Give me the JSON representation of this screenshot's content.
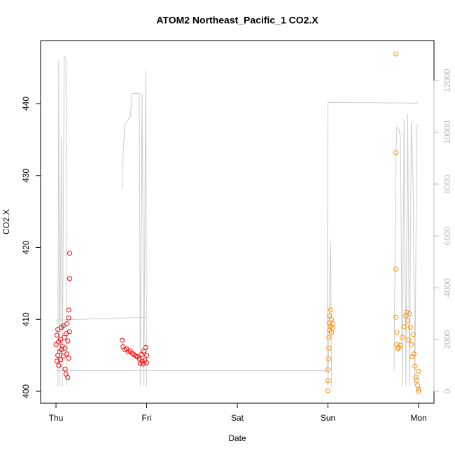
{
  "chart_data": {
    "type": "scatter",
    "title": "ATOM2 Northeast_Pacific_1 CO2.X",
    "x_label": "Date",
    "y_label": "CO2.X",
    "xlim": [
      -0.17,
      4.17
    ],
    "xticks": [
      {
        "value": 0,
        "label": "Thu"
      },
      {
        "value": 1,
        "label": "Fri"
      },
      {
        "value": 2,
        "label": "Sat"
      },
      {
        "value": 3,
        "label": "Sun"
      },
      {
        "value": 4,
        "label": "Mon"
      }
    ],
    "ylim": [
      398.35,
      448.76
    ],
    "yticks": [
      400,
      410,
      420,
      430,
      440
    ],
    "y2lim": [
      -459,
      13540
    ],
    "y2ticks": [
      0,
      2000,
      4000,
      6000,
      8000,
      10000,
      12000
    ],
    "series": [
      {
        "color": "#ff0000",
        "x": [
          0.0,
          0.01,
          0.01,
          0.02,
          0.02,
          0.03,
          0.03,
          0.04,
          0.05,
          0.05,
          0.06,
          0.06,
          0.07,
          0.08,
          0.08,
          0.09,
          0.1,
          0.1,
          0.11,
          0.11,
          0.12,
          0.12,
          0.13,
          0.13,
          0.14,
          0.14,
          0.14,
          0.15,
          0.15,
          0.15,
          0.73,
          0.74,
          0.76,
          0.78,
          0.8,
          0.82,
          0.84,
          0.86,
          0.88,
          0.9,
          0.92,
          0.93,
          0.94,
          0.95,
          0.96,
          0.97,
          0.98,
          0.99,
          1.0,
          1.0
        ],
        "values": [
          406.5,
          404.2,
          407.8,
          405.0,
          408.6,
          403.6,
          406.9,
          405.5,
          407.2,
          404.4,
          408.9,
          405.8,
          406.3,
          404.9,
          409.1,
          407.5,
          403.1,
          406.0,
          408.0,
          402.4,
          405.2,
          409.4,
          401.9,
          407.0,
          404.6,
          410.2,
          411.3,
          415.7,
          419.2,
          408.3,
          407.1,
          406.2,
          405.8,
          405.9,
          405.5,
          405.6,
          405.3,
          405.1,
          404.9,
          404.8,
          404.5,
          403.9,
          405.1,
          404.2,
          403.8,
          405.6,
          404.3,
          406.1,
          405.0,
          404.0
        ]
      },
      {
        "color": "#ff8c00",
        "x": [
          3.0,
          3.0,
          3.0,
          3.01,
          3.01,
          3.01,
          3.02,
          3.02,
          3.02,
          3.03,
          3.03,
          3.04,
          3.04,
          3.05,
          3.05,
          3.75,
          3.75,
          3.75,
          3.75,
          3.76,
          3.76,
          3.77,
          3.78,
          3.8,
          3.82,
          3.84,
          3.86,
          3.87,
          3.88,
          3.89,
          3.9,
          3.91,
          3.92,
          3.93,
          3.94,
          3.95,
          3.96,
          3.97,
          3.98,
          3.99,
          4.0,
          4.0,
          4.0
        ],
        "values": [
          400.1,
          401.5,
          403.0,
          404.5,
          406.0,
          407.5,
          408.5,
          409.5,
          410.5,
          411.3,
          409.0,
          408.2,
          410.0,
          409.4,
          408.8,
          446.9,
          433.2,
          417.0,
          410.3,
          408.2,
          406.5,
          405.9,
          406.1,
          406.4,
          407.5,
          409.0,
          410.5,
          411.0,
          409.8,
          407.2,
          410.8,
          408.9,
          406.5,
          404.8,
          407.9,
          405.2,
          403.5,
          402.0,
          401.5,
          400.8,
          400.3,
          402.8,
          400.0
        ]
      },
      {
        "color": "#cccccc",
        "axis": "y2",
        "x": [
          0.0,
          1.0,
          null,
          0.0,
          2.99,
          3.0,
          4.0,
          null,
          0.02,
          0.03,
          0.04,
          0.06,
          0.07,
          0.09,
          0.11,
          0.12,
          null,
          0.73,
          0.74,
          0.76,
          0.82,
          0.84,
          0.92,
          0.93,
          0.95,
          0.97,
          0.99,
          1.0,
          null,
          3.0,
          3.01,
          3.02,
          3.03,
          3.04,
          null,
          3.73,
          3.75,
          3.76,
          3.78,
          3.8,
          3.82,
          3.84,
          3.86,
          3.88,
          3.9,
          3.92,
          3.94,
          3.96,
          3.98,
          4.0
        ],
        "values": [
          2750,
          2860,
          null,
          800,
          800,
          11150,
          11130,
          null,
          200,
          12800,
          200,
          9800,
          200,
          12950,
          12800,
          200,
          null,
          7800,
          9200,
          10300,
          10600,
          11500,
          11500,
          200,
          11500,
          200,
          12400,
          200,
          null,
          200,
          2000,
          4500,
          5800,
          200,
          null,
          800,
          9000,
          10200,
          10150,
          9800,
          200,
          10500,
          200,
          10700,
          200,
          10400,
          8000,
          200,
          10200,
          10300
        ]
      }
    ]
  }
}
